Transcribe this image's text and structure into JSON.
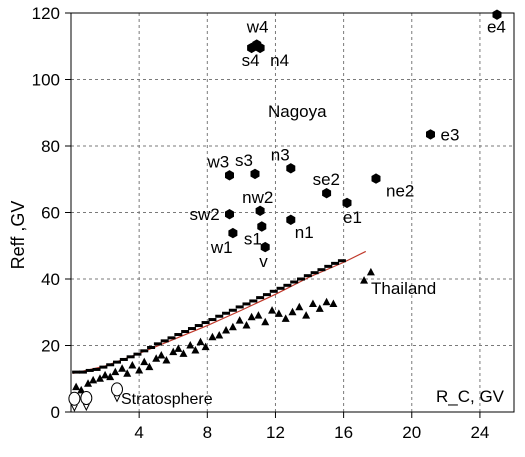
{
  "chart_data": {
    "type": "scatter",
    "title": "",
    "xlabel": "R_C, GV",
    "ylabel": "Reff ,GV",
    "xlim": [
      0,
      26
    ],
    "ylim": [
      0,
      120
    ],
    "x_ticks": [
      4,
      8,
      12,
      16,
      20,
      24
    ],
    "y_ticks": [
      0,
      20,
      40,
      60,
      80,
      100,
      120
    ],
    "grid": true,
    "annotations": [
      "Nagoya",
      "Thailand",
      "Stratosphere"
    ],
    "series": [
      {
        "marker": "hexagon",
        "points": [
          {
            "label": "w4",
            "x": 10.9,
            "y": 110.5
          },
          {
            "label": "s4",
            "x": 10.6,
            "y": 109.5
          },
          {
            "label": "n4",
            "x": 11.1,
            "y": 109.5
          },
          {
            "label": "e4",
            "x": 25.0,
            "y": 119.5
          },
          {
            "label": "e3",
            "x": 21.1,
            "y": 83.5
          },
          {
            "label": "w3",
            "x": 9.3,
            "y": 71.2
          },
          {
            "label": "s3",
            "x": 10.8,
            "y": 71.6
          },
          {
            "label": "n3",
            "x": 12.9,
            "y": 73.3
          },
          {
            "label": "se2",
            "x": 15.0,
            "y": 65.8
          },
          {
            "label": "ne2",
            "x": 17.9,
            "y": 70.2
          },
          {
            "label": "e1",
            "x": 16.2,
            "y": 62.9
          },
          {
            "label": "nw2",
            "x": 11.1,
            "y": 60.5
          },
          {
            "label": "sw2",
            "x": 9.3,
            "y": 59.5
          },
          {
            "label": "s1",
            "x": 11.2,
            "y": 55.8
          },
          {
            "label": "n1",
            "x": 12.9,
            "y": 57.8
          },
          {
            "label": "w1",
            "x": 9.5,
            "y": 53.8
          },
          {
            "label": "v",
            "x": 11.4,
            "y": 49.6
          }
        ]
      },
      {
        "name": "Thailand",
        "marker": "triangle",
        "points": [
          [
            0.3,
            7.5
          ],
          [
            0.6,
            6.5
          ],
          [
            1.0,
            8.5
          ],
          [
            1.3,
            9.5
          ],
          [
            1.7,
            10.0
          ],
          [
            2.0,
            11.0
          ],
          [
            2.3,
            10.5
          ],
          [
            2.6,
            12.0
          ],
          [
            3.0,
            13.0
          ],
          [
            3.3,
            11.5
          ],
          [
            3.6,
            14.0
          ],
          [
            4.0,
            12.5
          ],
          [
            4.3,
            15.0
          ],
          [
            4.6,
            13.5
          ],
          [
            5.0,
            16.0
          ],
          [
            5.3,
            17.0
          ],
          [
            5.6,
            15.5
          ],
          [
            6.0,
            18.0
          ],
          [
            6.3,
            19.0
          ],
          [
            6.6,
            17.5
          ],
          [
            7.0,
            20.0
          ],
          [
            7.3,
            18.5
          ],
          [
            7.6,
            21.0
          ],
          [
            7.9,
            19.5
          ],
          [
            8.3,
            22.5
          ],
          [
            8.7,
            23.0
          ],
          [
            9.1,
            24.5
          ],
          [
            9.5,
            25.5
          ],
          [
            9.9,
            27.5
          ],
          [
            10.3,
            26.0
          ],
          [
            10.6,
            28.5
          ],
          [
            11.0,
            29.0
          ],
          [
            11.4,
            27.0
          ],
          [
            11.8,
            30.5
          ],
          [
            12.2,
            29.5
          ],
          [
            12.6,
            28.0
          ],
          [
            13.0,
            30.0
          ],
          [
            13.4,
            31.5
          ],
          [
            13.8,
            29.0
          ],
          [
            14.2,
            32.5
          ],
          [
            14.6,
            31.0
          ],
          [
            15.0,
            33.0
          ],
          [
            15.4,
            32.5
          ],
          [
            17.2,
            39.5
          ],
          [
            17.6,
            42.0
          ]
        ]
      },
      {
        "marker": "dash",
        "points": [
          [
            0.3,
            12.0
          ],
          [
            0.7,
            12.0
          ],
          [
            1.1,
            12.5
          ],
          [
            1.5,
            12.8
          ],
          [
            1.9,
            13.5
          ],
          [
            2.3,
            14.2
          ],
          [
            2.7,
            15.0
          ],
          [
            3.1,
            15.8
          ],
          [
            3.5,
            16.6
          ],
          [
            3.9,
            17.4
          ],
          [
            4.3,
            18.4
          ],
          [
            4.7,
            19.4
          ],
          [
            5.1,
            20.5
          ],
          [
            5.5,
            21.4
          ],
          [
            5.9,
            22.3
          ],
          [
            6.3,
            23.3
          ],
          [
            6.7,
            24.2
          ],
          [
            7.1,
            25.1
          ],
          [
            7.5,
            26.0
          ],
          [
            7.9,
            26.9
          ],
          [
            8.3,
            27.8
          ],
          [
            8.7,
            28.8
          ],
          [
            9.1,
            29.7
          ],
          [
            9.5,
            30.6
          ],
          [
            9.9,
            31.6
          ],
          [
            10.3,
            32.5
          ],
          [
            10.7,
            33.4
          ],
          [
            11.1,
            34.4
          ],
          [
            11.5,
            35.3
          ],
          [
            11.9,
            36.3
          ],
          [
            12.3,
            37.2
          ],
          [
            12.7,
            38.1
          ],
          [
            13.1,
            39.1
          ],
          [
            13.5,
            40.0
          ],
          [
            13.9,
            41.0
          ],
          [
            14.3,
            41.9
          ],
          [
            14.7,
            42.8
          ],
          [
            15.1,
            43.8
          ],
          [
            15.5,
            44.7
          ],
          [
            15.9,
            45.5
          ]
        ]
      },
      {
        "name": "Stratosphere",
        "marker": "balloon",
        "points": [
          [
            0.2,
            4.0
          ],
          [
            0.9,
            4.2
          ],
          [
            2.7,
            6.8
          ]
        ]
      }
    ],
    "fit_line": {
      "color": "#c0392b",
      "points": [
        [
          0.1,
          11.6
        ],
        [
          2.0,
          13.8
        ],
        [
          4.0,
          17.6
        ],
        [
          6.0,
          21.8
        ],
        [
          8.0,
          26.0
        ],
        [
          10.0,
          30.6
        ],
        [
          12.0,
          35.4
        ],
        [
          14.0,
          40.6
        ],
        [
          16.0,
          45.0
        ],
        [
          17.3,
          48.3
        ]
      ]
    }
  }
}
